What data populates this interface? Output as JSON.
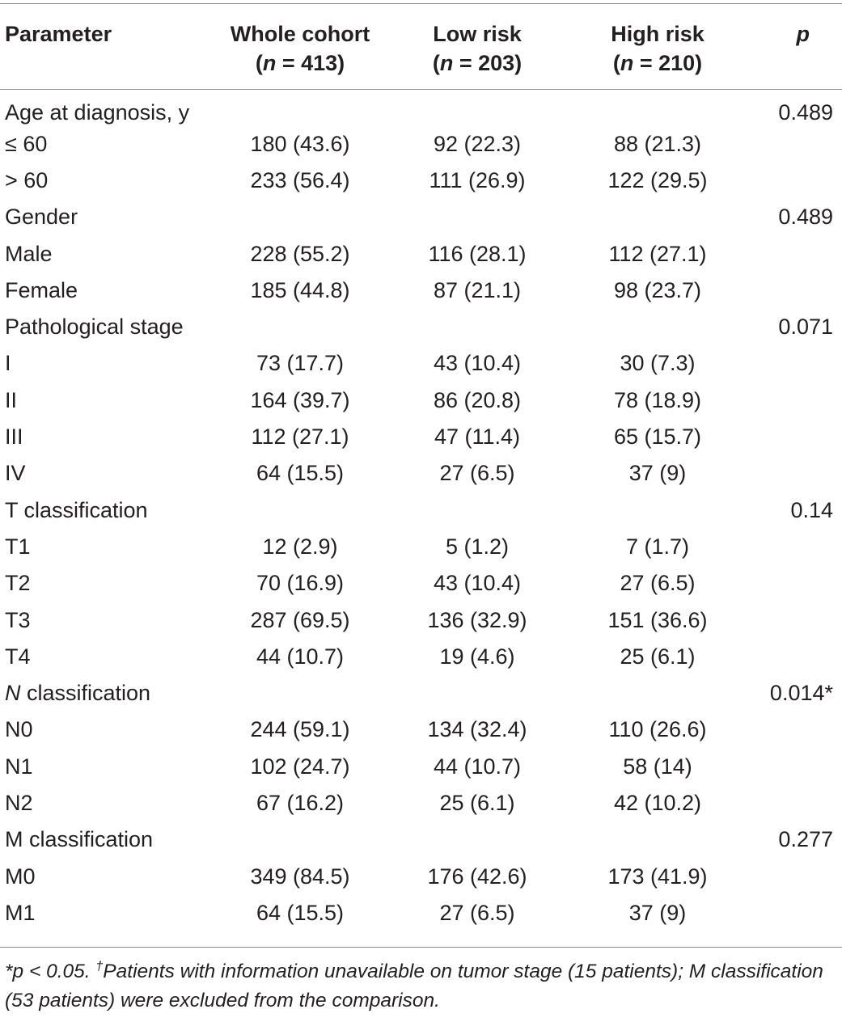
{
  "table": {
    "headers": {
      "parameter": "Parameter",
      "whole": {
        "title": "Whole cohort",
        "n_label": "n",
        "n_value": " = 413)"
      },
      "low": {
        "title": "Low risk",
        "n_label": "n",
        "n_value": " = 203)"
      },
      "high": {
        "title": "High risk",
        "n_label": "n",
        "n_value": " = 210)"
      },
      "p": "p"
    },
    "rows": [
      {
        "label": "Age at diagnosis, y",
        "whole": "",
        "low": "",
        "high": "",
        "p": "0.489"
      },
      {
        "label": "≤ 60",
        "whole": "180 (43.6)",
        "low": "92 (22.3)",
        "high": "88 (21.3)",
        "p": ""
      },
      {
        "label": "> 60",
        "whole": "233 (56.4)",
        "low": "111 (26.9)",
        "high": "122 (29.5)",
        "p": ""
      },
      {
        "label": "Gender",
        "whole": "",
        "low": "",
        "high": "",
        "p": "0.489"
      },
      {
        "label": "Male",
        "whole": "228 (55.2)",
        "low": "116 (28.1)",
        "high": "112 (27.1)",
        "p": ""
      },
      {
        "label": "Female",
        "whole": "185 (44.8)",
        "low": "87 (21.1)",
        "high": "98 (23.7)",
        "p": ""
      },
      {
        "label": "Pathological stage",
        "whole": "",
        "low": "",
        "high": "",
        "p": "0.071"
      },
      {
        "label": "I",
        "whole": "73 (17.7)",
        "low": "43 (10.4)",
        "high": "30 (7.3)",
        "p": ""
      },
      {
        "label": "II",
        "whole": "164 (39.7)",
        "low": "86 (20.8)",
        "high": "78 (18.9)",
        "p": ""
      },
      {
        "label": "III",
        "whole": "112 (27.1)",
        "low": "47 (11.4)",
        "high": "65 (15.7)",
        "p": ""
      },
      {
        "label": "IV",
        "whole": "64 (15.5)",
        "low": "27 (6.5)",
        "high": "37 (9)",
        "p": ""
      },
      {
        "label": "T classification",
        "whole": "",
        "low": "",
        "high": "",
        "p": "0.14"
      },
      {
        "label": "T1",
        "whole": "12 (2.9)",
        "low": "5 (1.2)",
        "high": "7 (1.7)",
        "p": ""
      },
      {
        "label": "T2",
        "whole": "70 (16.9)",
        "low": "43 (10.4)",
        "high": "27 (6.5)",
        "p": ""
      },
      {
        "label": "T3",
        "whole": "287 (69.5)",
        "low": "136 (32.9)",
        "high": "151 (36.6)",
        "p": ""
      },
      {
        "label": "T4",
        "whole": "44 (10.7)",
        "low": "19 (4.6)",
        "high": "25 (6.1)",
        "p": ""
      },
      {
        "label_italic": "N",
        "label": " classification",
        "whole": "",
        "low": "",
        "high": "",
        "p": "0.014*"
      },
      {
        "label": "N0",
        "whole": "244 (59.1)",
        "low": "134 (32.4)",
        "high": "110 (26.6)",
        "p": ""
      },
      {
        "label": "N1",
        "whole": "102 (24.7)",
        "low": "44 (10.7)",
        "high": "58 (14)",
        "p": ""
      },
      {
        "label": "N2",
        "whole": "67 (16.2)",
        "low": "25 (6.1)",
        "high": "42 (10.2)",
        "p": ""
      },
      {
        "label": "M classification",
        "whole": "",
        "low": "",
        "high": "",
        "p": "0.277"
      },
      {
        "label": "M0",
        "whole": "349 (84.5)",
        "low": "176 (42.6)",
        "high": "173 (41.9)",
        "p": ""
      },
      {
        "label": "M1",
        "whole": "64 (15.5)",
        "low": "27 (6.5)",
        "high": "37 (9)",
        "p": ""
      }
    ]
  },
  "footnote": {
    "part1": "*p < 0.05. ",
    "dagger": "†",
    "part2": "Patients with information unavailable on tumor stage (15 patients); M classification (53 patients) were excluded from the comparison."
  }
}
